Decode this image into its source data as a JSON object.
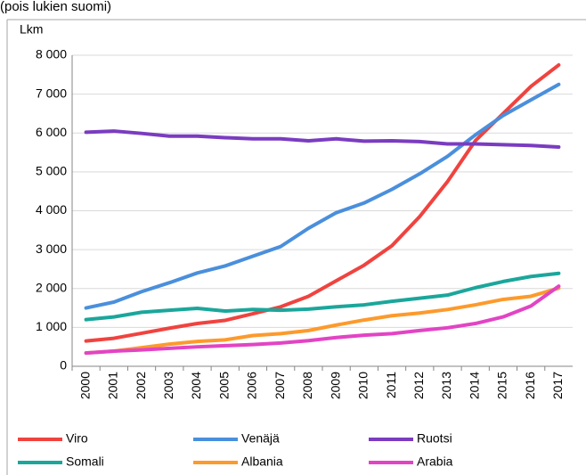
{
  "chart_data": {
    "type": "line",
    "subtitle": "(pois lukien suomi)",
    "y_label": "Lkm",
    "categories": [
      "2000",
      "2001",
      "2002",
      "2003",
      "2004",
      "2005",
      "2006",
      "2007",
      "2008",
      "2009",
      "2010",
      "2011",
      "2012",
      "2013",
      "2014",
      "2015",
      "2016",
      "2017"
    ],
    "series": [
      {
        "name": "Viro",
        "color": "#f0433f",
        "values": [
          650,
          720,
          850,
          980,
          1100,
          1180,
          1350,
          1530,
          1800,
          2200,
          2600,
          3100,
          3850,
          4750,
          5800,
          6500,
          7200,
          7750
        ]
      },
      {
        "name": "Venäjä",
        "color": "#4a8fdc",
        "values": [
          1500,
          1650,
          1920,
          2150,
          2400,
          2580,
          2830,
          3080,
          3550,
          3950,
          4200,
          4550,
          4950,
          5400,
          5950,
          6450,
          6850,
          7250
        ]
      },
      {
        "name": "Ruotsi",
        "color": "#7a3cc0",
        "values": [
          6020,
          6050,
          5990,
          5920,
          5920,
          5880,
          5850,
          5850,
          5800,
          5850,
          5790,
          5800,
          5780,
          5720,
          5720,
          5700,
          5680,
          5640
        ]
      },
      {
        "name": "Somali",
        "color": "#1ba69b",
        "values": [
          1200,
          1270,
          1390,
          1440,
          1490,
          1420,
          1460,
          1440,
          1470,
          1530,
          1580,
          1670,
          1750,
          1830,
          2020,
          2180,
          2310,
          2390
        ]
      },
      {
        "name": "Albania",
        "color": "#fd9a2c",
        "values": [
          340,
          390,
          480,
          570,
          640,
          680,
          790,
          840,
          920,
          1060,
          1190,
          1300,
          1370,
          1460,
          1580,
          1720,
          1800,
          2010
        ]
      },
      {
        "name": "Arabia",
        "color": "#e244c4",
        "values": [
          340,
          390,
          420,
          460,
          500,
          530,
          560,
          600,
          660,
          740,
          800,
          840,
          920,
          990,
          1100,
          1270,
          1550,
          2060
        ]
      }
    ],
    "ylim": [
      0,
      8000
    ],
    "yticks": [
      0,
      {
        "value": 1000,
        "label": "1 000"
      },
      {
        "value": 2000,
        "label": "2 000"
      },
      {
        "value": 3000,
        "label": "3 000"
      },
      {
        "value": 4000,
        "label": "4 000"
      },
      {
        "value": 5000,
        "label": "5 000"
      },
      {
        "value": 6000,
        "label": "6 000"
      },
      {
        "value": 7000,
        "label": "7 000"
      },
      {
        "value": 8000,
        "label": "8 000"
      }
    ],
    "grid": true
  }
}
